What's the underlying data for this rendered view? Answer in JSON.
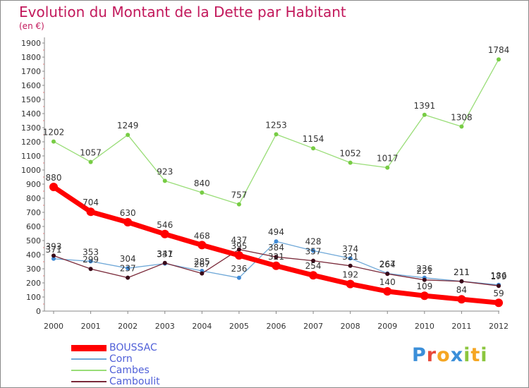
{
  "header": {
    "title": "Evolution du Montant de la Dette par Habitant",
    "subtitle": "(en €)"
  },
  "chart_data": {
    "type": "line",
    "title": "Evolution du Montant de la Dette par Habitant",
    "subtitle": "(en €)",
    "x": [
      "2000",
      "2001",
      "2002",
      "2003",
      "2004",
      "2005",
      "2006",
      "2007",
      "2008",
      "2009",
      "2010",
      "2011",
      "2012"
    ],
    "ylim": [
      0,
      1900
    ],
    "yticks": [
      0,
      100,
      200,
      300,
      400,
      500,
      600,
      700,
      800,
      900,
      1000,
      1100,
      1200,
      1300,
      1400,
      1500,
      1600,
      1700,
      1800,
      1900
    ],
    "grid": false,
    "legend_position": "bottom-left",
    "series": [
      {
        "name": "BOUSSAC",
        "color": "#ff0000",
        "marker_color": "#ff0000",
        "values": [
          880,
          704,
          630,
          546,
          468,
          395,
          321,
          254,
          192,
          140,
          109,
          84,
          59
        ]
      },
      {
        "name": "Corn",
        "color": "#6fa8d8",
        "marker_color": "#3f8ad6",
        "values": [
          371,
          353,
          304,
          337,
          285,
          236,
          494,
          428,
          374,
          267,
          236,
          211,
          186
        ]
      },
      {
        "name": "Cambes",
        "color": "#99dd77",
        "marker_color": "#77cc44",
        "values": [
          1202,
          1057,
          1249,
          923,
          840,
          757,
          1253,
          1154,
          1052,
          1017,
          1391,
          1308,
          1784
        ]
      },
      {
        "name": "Camboulit",
        "color": "#7a2a3a",
        "marker_color": "#3a0a18",
        "values": [
          393,
          299,
          237,
          341,
          267,
          437,
          384,
          357,
          321,
          264,
          221,
          211,
          179
        ]
      }
    ]
  },
  "logo": {
    "letters": [
      {
        "char": "P",
        "color": "#3b8fd9"
      },
      {
        "char": "r",
        "color": "#e8493a"
      },
      {
        "char": "o",
        "color": "#f5a623"
      },
      {
        "char": "x",
        "color": "#3b8fd9"
      },
      {
        "char": "i",
        "color": "#8cc63f"
      },
      {
        "char": "t",
        "color": "#f5a623"
      },
      {
        "char": "i",
        "color": "#8cc63f"
      }
    ]
  }
}
